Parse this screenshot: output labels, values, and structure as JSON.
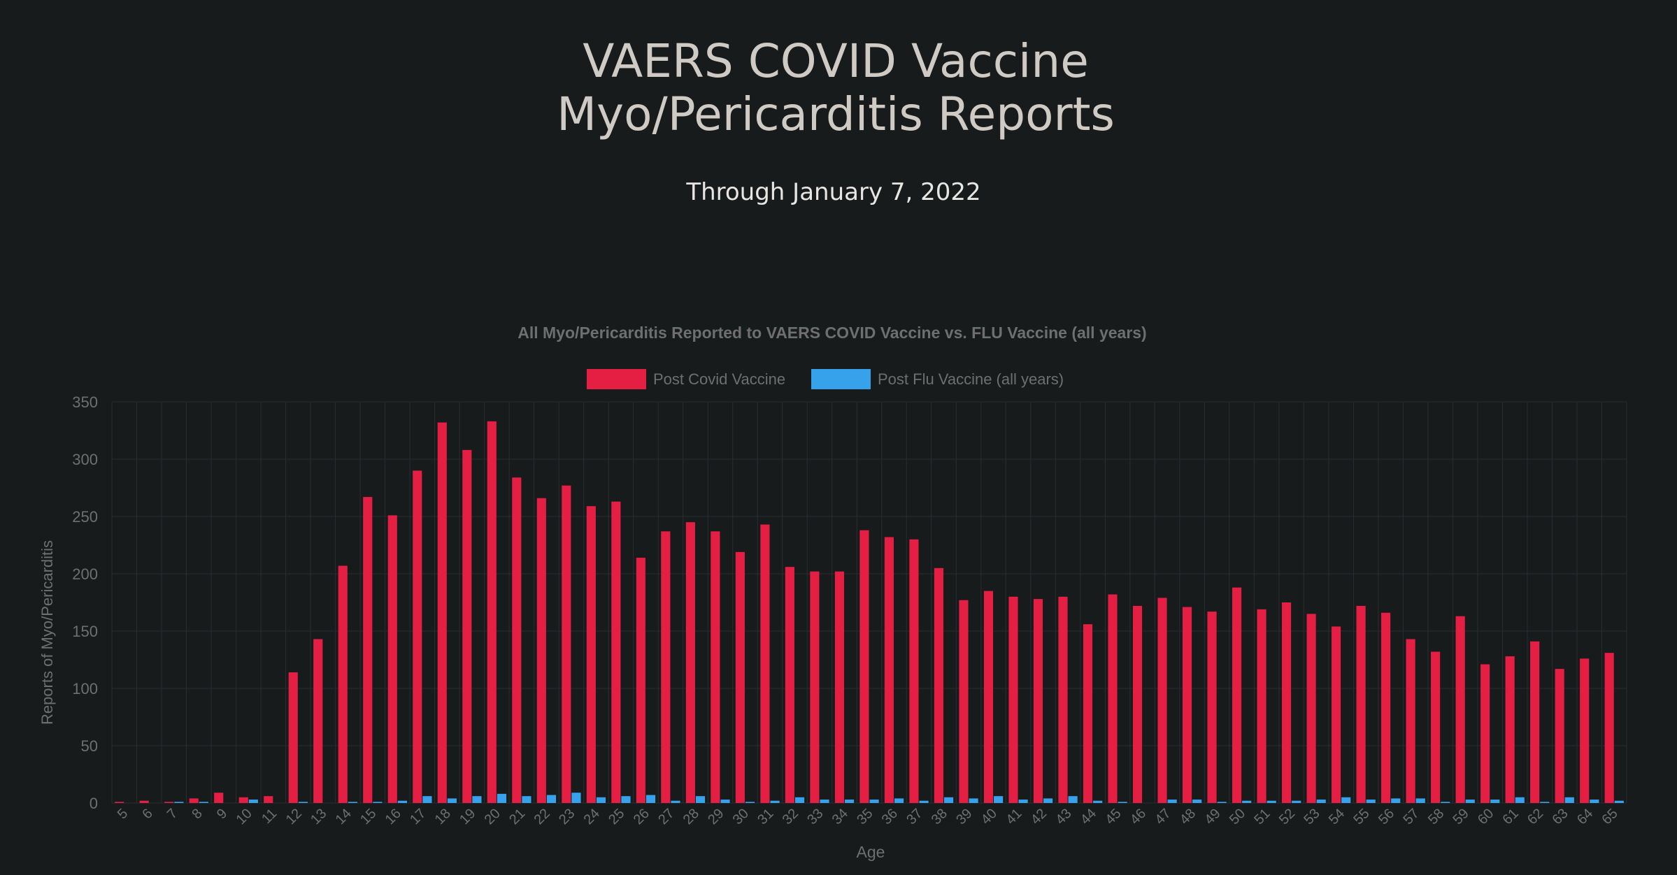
{
  "header": {
    "title_line1": "VAERS COVID Vaccine",
    "title_line2": "Myo/Pericarditis Reports",
    "subtitle": "Through January 7, 2022"
  },
  "colors": {
    "background": "#181b1c",
    "covid": "#e51f43",
    "flu": "#36a2eb",
    "grid": "#2a2d2f",
    "text": "#6f6f6f"
  },
  "chart_data": {
    "type": "bar",
    "title": "All Myo/Pericarditis Reported to VAERS COVID Vaccine vs. FLU Vaccine (all years)",
    "xlabel": "Age",
    "ylabel": "Reports of Myo/Pericarditis",
    "ylim": [
      0,
      350
    ],
    "yticks": [
      0,
      50,
      100,
      150,
      200,
      250,
      300,
      350
    ],
    "legend_position": "top",
    "grid": true,
    "categories": [
      "5",
      "6",
      "7",
      "8",
      "9",
      "10",
      "11",
      "12",
      "13",
      "14",
      "15",
      "16",
      "17",
      "18",
      "19",
      "20",
      "21",
      "22",
      "23",
      "24",
      "25",
      "26",
      "27",
      "28",
      "29",
      "30",
      "31",
      "32",
      "33",
      "34",
      "35",
      "36",
      "37",
      "38",
      "39",
      "40",
      "41",
      "42",
      "43",
      "44",
      "45",
      "46",
      "47",
      "48",
      "49",
      "50",
      "51",
      "52",
      "53",
      "54",
      "55",
      "56",
      "57",
      "58",
      "59",
      "60",
      "61",
      "62",
      "63",
      "64",
      "65"
    ],
    "series": [
      {
        "name": "Post Covid Vaccine",
        "color": "#e51f43",
        "values": [
          1,
          2,
          1,
          4,
          9,
          5,
          6,
          114,
          143,
          207,
          267,
          251,
          290,
          332,
          308,
          333,
          284,
          266,
          277,
          259,
          263,
          214,
          237,
          245,
          237,
          219,
          243,
          206,
          202,
          202,
          238,
          232,
          230,
          205,
          177,
          185,
          180,
          178,
          180,
          156,
          182,
          172,
          179,
          171,
          167,
          188,
          169,
          175,
          165,
          154,
          172,
          166,
          143,
          132,
          163,
          121,
          128,
          141,
          117,
          126,
          131
        ]
      },
      {
        "name": "Post Flu Vaccine (all years)",
        "color": "#36a2eb",
        "values": [
          0,
          0,
          1,
          1,
          0,
          3,
          0,
          1,
          0,
          1,
          1,
          2,
          6,
          4,
          6,
          8,
          6,
          7,
          9,
          5,
          6,
          7,
          2,
          6,
          3,
          1,
          2,
          5,
          3,
          3,
          3,
          4,
          2,
          5,
          4,
          6,
          3,
          4,
          6,
          2,
          1,
          0,
          3,
          3,
          1,
          2,
          2,
          2,
          3,
          5,
          3,
          4,
          4,
          1,
          3,
          3,
          5,
          1,
          5,
          3,
          2
        ]
      }
    ]
  }
}
